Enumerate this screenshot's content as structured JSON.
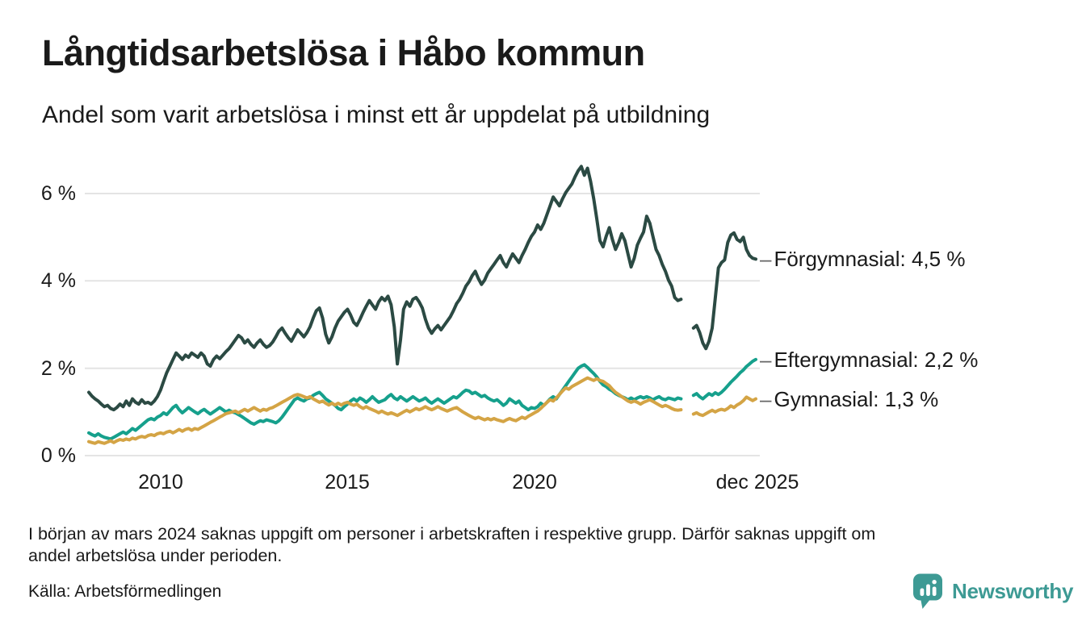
{
  "header": {
    "title": "Långtidsarbetslösa i Håbo kommun",
    "subtitle": "Andel som varit arbetslösa i minst ett år uppdelat på utbildning"
  },
  "chart_data": {
    "type": "line",
    "title": "Långtidsarbetslösa i Håbo kommun",
    "subtitle": "Andel som varit arbetslösa i minst ett år uppdelat på utbildning",
    "unit": "percent of labour force unemployed at least one year",
    "x_interval": "monthly",
    "x_start": "2008-02",
    "x_end": "2025-12",
    "missing_months": [
      "2024-01",
      "2024-02",
      "2024-03"
    ],
    "grid": "horizontal",
    "ylim": [
      0,
      6.8
    ],
    "y_ticks": [
      0,
      2,
      4,
      6
    ],
    "y_tick_labels": [
      "0 %",
      "2 %",
      "4 %",
      "6 %"
    ],
    "x_tick_years": [
      2010,
      2015,
      2020,
      2025.92
    ],
    "x_tick_labels": [
      "2010",
      "2015",
      "2020",
      "dec 2025"
    ],
    "series_label_dash": "–",
    "colors": {
      "grid": "#e4e4e4",
      "text": "#1a1a1a"
    },
    "series": [
      {
        "id": "forgymnasial",
        "name": "Förgymnasial",
        "label": "Förgymnasial: 4,5 %",
        "last_value": 4.5,
        "color": "#2b4a43",
        "values": [
          1.45,
          1.36,
          1.3,
          1.25,
          1.18,
          1.12,
          1.15,
          1.08,
          1.05,
          1.1,
          1.18,
          1.12,
          1.25,
          1.15,
          1.3,
          1.22,
          1.18,
          1.28,
          1.2,
          1.22,
          1.18,
          1.25,
          1.35,
          1.5,
          1.7,
          1.9,
          2.05,
          2.2,
          2.35,
          2.28,
          2.2,
          2.3,
          2.25,
          2.35,
          2.3,
          2.25,
          2.35,
          2.28,
          2.1,
          2.05,
          2.2,
          2.28,
          2.22,
          2.3,
          2.38,
          2.45,
          2.55,
          2.65,
          2.75,
          2.7,
          2.58,
          2.65,
          2.55,
          2.48,
          2.58,
          2.65,
          2.55,
          2.48,
          2.52,
          2.6,
          2.72,
          2.85,
          2.92,
          2.8,
          2.7,
          2.62,
          2.75,
          2.88,
          2.8,
          2.72,
          2.82,
          2.95,
          3.15,
          3.32,
          3.38,
          3.15,
          2.78,
          2.58,
          2.72,
          2.92,
          3.08,
          3.18,
          3.28,
          3.35,
          3.22,
          3.05,
          2.98,
          3.12,
          3.28,
          3.42,
          3.55,
          3.45,
          3.35,
          3.52,
          3.62,
          3.55,
          3.65,
          3.45,
          2.95,
          2.1,
          2.65,
          3.35,
          3.52,
          3.42,
          3.58,
          3.62,
          3.52,
          3.38,
          3.12,
          2.92,
          2.8,
          2.9,
          2.98,
          2.88,
          2.98,
          3.08,
          3.18,
          3.32,
          3.48,
          3.58,
          3.72,
          3.88,
          3.98,
          4.12,
          4.22,
          4.05,
          3.92,
          4.02,
          4.18,
          4.28,
          4.38,
          4.48,
          4.58,
          4.42,
          4.32,
          4.48,
          4.62,
          4.52,
          4.42,
          4.58,
          4.72,
          4.88,
          5.02,
          5.12,
          5.28,
          5.18,
          5.32,
          5.52,
          5.72,
          5.92,
          5.82,
          5.72,
          5.88,
          6.02,
          6.12,
          6.22,
          6.38,
          6.52,
          6.62,
          6.42,
          6.58,
          6.28,
          5.88,
          5.42,
          4.92,
          4.78,
          5.02,
          5.22,
          4.95,
          4.72,
          4.88,
          5.08,
          4.92,
          4.62,
          4.32,
          4.52,
          4.82,
          4.98,
          5.12,
          5.48,
          5.32,
          5.02,
          4.72,
          4.58,
          4.38,
          4.22,
          4.02,
          3.88,
          3.62,
          3.55,
          3.58,
          null,
          null,
          null,
          2.92,
          2.98,
          2.82,
          2.58,
          2.45,
          2.62,
          2.92,
          3.6,
          4.3,
          4.42,
          4.48,
          4.88,
          5.05,
          5.1,
          4.95,
          4.9,
          5.0,
          4.72,
          4.58,
          4.52,
          4.5
        ]
      },
      {
        "id": "eftergymnasial",
        "name": "Eftergymnasial",
        "label": "Eftergymnasial: 2,2 %",
        "last_value": 2.2,
        "color": "#16a08c",
        "values": [
          0.52,
          0.48,
          0.45,
          0.5,
          0.45,
          0.42,
          0.4,
          0.38,
          0.42,
          0.46,
          0.5,
          0.54,
          0.5,
          0.56,
          0.62,
          0.58,
          0.64,
          0.7,
          0.76,
          0.82,
          0.85,
          0.82,
          0.88,
          0.92,
          0.98,
          0.94,
          1.02,
          1.1,
          1.15,
          1.05,
          0.98,
          1.04,
          1.1,
          1.05,
          1.0,
          0.96,
          1.02,
          1.06,
          1.0,
          0.95,
          1.0,
          1.05,
          1.1,
          1.05,
          1.0,
          1.04,
          1.0,
          0.98,
          0.94,
          0.9,
          0.85,
          0.8,
          0.75,
          0.72,
          0.76,
          0.8,
          0.78,
          0.82,
          0.8,
          0.78,
          0.75,
          0.8,
          0.88,
          0.98,
          1.08,
          1.18,
          1.28,
          1.32,
          1.28,
          1.25,
          1.3,
          1.32,
          1.38,
          1.42,
          1.45,
          1.38,
          1.3,
          1.25,
          1.2,
          1.15,
          1.08,
          1.05,
          1.12,
          1.18,
          1.25,
          1.3,
          1.25,
          1.32,
          1.28,
          1.22,
          1.28,
          1.35,
          1.28,
          1.22,
          1.25,
          1.28,
          1.35,
          1.4,
          1.32,
          1.28,
          1.35,
          1.3,
          1.25,
          1.3,
          1.35,
          1.3,
          1.25,
          1.28,
          1.32,
          1.25,
          1.2,
          1.25,
          1.3,
          1.25,
          1.2,
          1.25,
          1.3,
          1.35,
          1.32,
          1.38,
          1.45,
          1.5,
          1.48,
          1.42,
          1.45,
          1.4,
          1.35,
          1.38,
          1.32,
          1.28,
          1.25,
          1.28,
          1.22,
          1.15,
          1.2,
          1.3,
          1.25,
          1.2,
          1.25,
          1.15,
          1.1,
          1.05,
          1.1,
          1.08,
          1.12,
          1.2,
          1.15,
          1.22,
          1.3,
          1.35,
          1.3,
          1.4,
          1.5,
          1.6,
          1.7,
          1.8,
          1.9,
          2.0,
          2.05,
          2.08,
          2.02,
          1.95,
          1.88,
          1.8,
          1.7,
          1.62,
          1.58,
          1.52,
          1.48,
          1.42,
          1.38,
          1.35,
          1.32,
          1.28,
          1.32,
          1.28,
          1.32,
          1.35,
          1.32,
          1.35,
          1.32,
          1.28,
          1.32,
          1.35,
          1.3,
          1.28,
          1.32,
          1.3,
          1.28,
          1.32,
          1.3,
          null,
          null,
          null,
          1.38,
          1.42,
          1.35,
          1.3,
          1.36,
          1.42,
          1.38,
          1.44,
          1.4,
          1.45,
          1.52,
          1.6,
          1.68,
          1.75,
          1.82,
          1.9,
          1.96,
          2.04,
          2.1,
          2.16,
          2.2
        ]
      },
      {
        "id": "gymnasial",
        "name": "Gymnasial",
        "label": "Gymnasial: 1,3 %",
        "last_value": 1.3,
        "color": "#d4a445",
        "values": [
          0.32,
          0.3,
          0.28,
          0.32,
          0.3,
          0.28,
          0.31,
          0.34,
          0.3,
          0.34,
          0.37,
          0.35,
          0.38,
          0.36,
          0.4,
          0.38,
          0.42,
          0.44,
          0.42,
          0.46,
          0.48,
          0.46,
          0.5,
          0.52,
          0.5,
          0.54,
          0.56,
          0.52,
          0.56,
          0.6,
          0.56,
          0.6,
          0.62,
          0.58,
          0.62,
          0.6,
          0.64,
          0.68,
          0.72,
          0.76,
          0.8,
          0.84,
          0.88,
          0.92,
          0.96,
          0.98,
          1.0,
          1.02,
          0.98,
          1.02,
          1.06,
          1.02,
          1.06,
          1.1,
          1.06,
          1.02,
          1.06,
          1.04,
          1.08,
          1.1,
          1.14,
          1.18,
          1.22,
          1.26,
          1.3,
          1.34,
          1.38,
          1.4,
          1.38,
          1.35,
          1.32,
          1.35,
          1.3,
          1.26,
          1.22,
          1.25,
          1.2,
          1.16,
          1.2,
          1.16,
          1.2,
          1.16,
          1.2,
          1.22,
          1.18,
          1.15,
          1.18,
          1.12,
          1.08,
          1.12,
          1.08,
          1.05,
          1.02,
          0.98,
          1.02,
          0.98,
          0.95,
          0.98,
          0.95,
          0.92,
          0.96,
          1.0,
          1.04,
          1.0,
          1.04,
          1.08,
          1.05,
          1.08,
          1.12,
          1.08,
          1.05,
          1.08,
          1.12,
          1.08,
          1.05,
          1.02,
          1.05,
          1.08,
          1.1,
          1.05,
          1.0,
          0.96,
          0.92,
          0.88,
          0.85,
          0.88,
          0.85,
          0.82,
          0.85,
          0.82,
          0.85,
          0.82,
          0.8,
          0.78,
          0.82,
          0.85,
          0.82,
          0.8,
          0.84,
          0.88,
          0.85,
          0.9,
          0.94,
          0.98,
          1.02,
          1.08,
          1.15,
          1.22,
          1.28,
          1.25,
          1.32,
          1.4,
          1.48,
          1.55,
          1.52,
          1.58,
          1.62,
          1.66,
          1.7,
          1.74,
          1.78,
          1.75,
          1.72,
          1.76,
          1.72,
          1.7,
          1.65,
          1.6,
          1.52,
          1.45,
          1.4,
          1.35,
          1.3,
          1.25,
          1.22,
          1.25,
          1.22,
          1.18,
          1.22,
          1.25,
          1.28,
          1.24,
          1.2,
          1.16,
          1.12,
          1.15,
          1.12,
          1.08,
          1.05,
          1.04,
          1.05,
          null,
          null,
          null,
          0.95,
          0.98,
          0.94,
          0.92,
          0.96,
          1.0,
          1.04,
          1.0,
          1.04,
          1.06,
          1.04,
          1.08,
          1.14,
          1.1,
          1.16,
          1.2,
          1.26,
          1.34,
          1.3,
          1.26,
          1.3
        ]
      }
    ]
  },
  "footnote": {
    "lines": [
      "I början av mars 2024 saknas uppgift om personer i arbetskraften i respektive grupp. Därför saknas uppgift om",
      "andel arbetslösa under perioden."
    ]
  },
  "source": "Källa: Arbetsförmedlingen",
  "branding": {
    "name": "Newsworthy",
    "color": "#3d9a94"
  }
}
